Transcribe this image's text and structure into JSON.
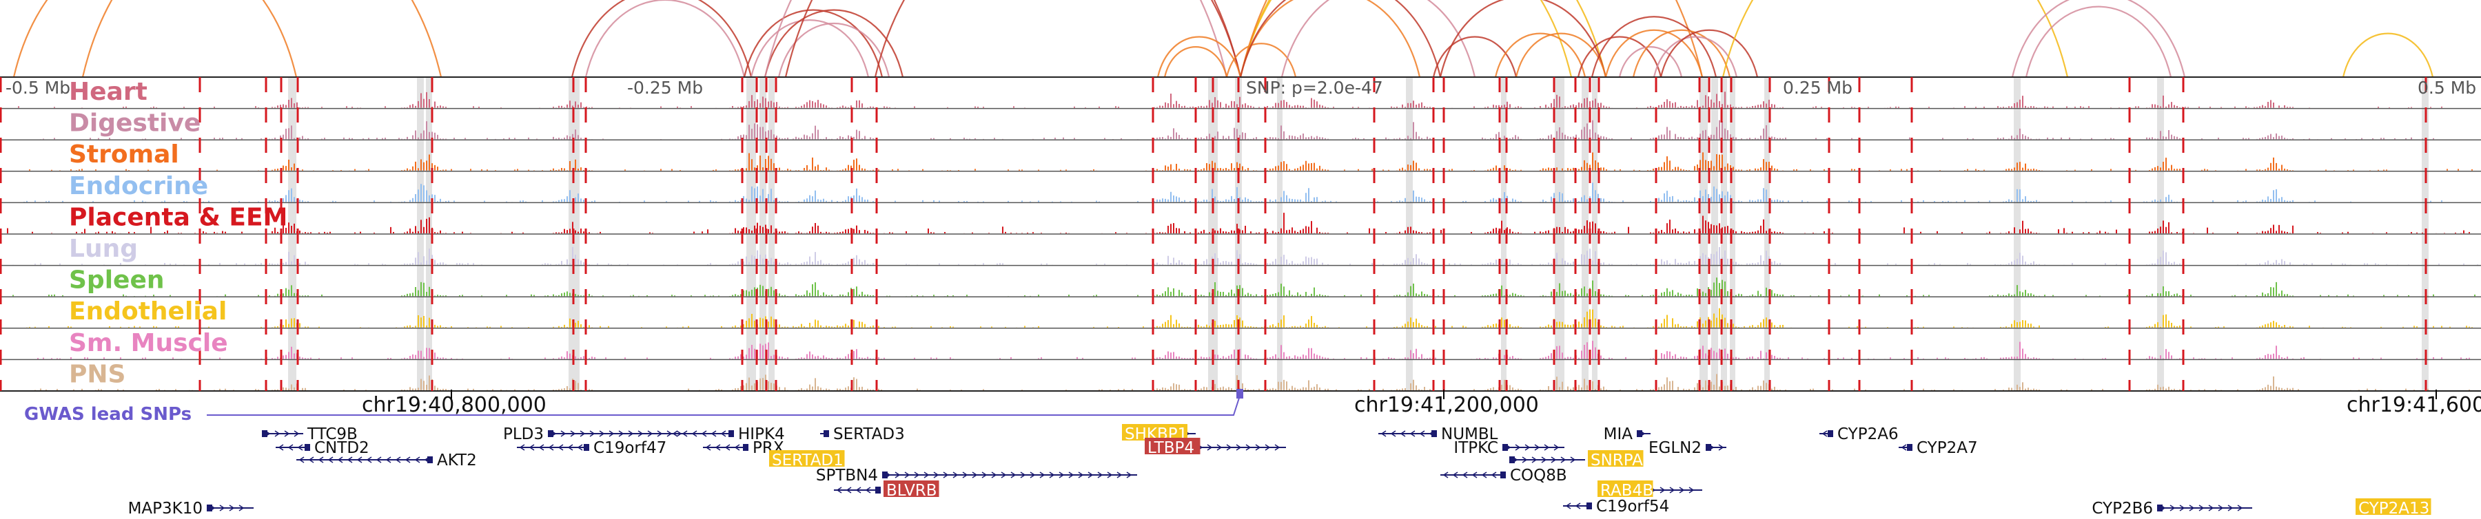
{
  "browser": {
    "tracks": [
      {
        "label": "Heart",
        "color": "#d0687f"
      },
      {
        "label": "Digestive",
        "color": "#c98ba6"
      },
      {
        "label": "Stromal",
        "color": "#f26e1e"
      },
      {
        "label": "Endocrine",
        "color": "#93bff0"
      },
      {
        "label": "Placenta & EEM",
        "color": "#d6181f"
      },
      {
        "label": "Lung",
        "color": "#cfcce6"
      },
      {
        "label": "Spleen",
        "color": "#6fc24a"
      },
      {
        "label": "Endothelial",
        "color": "#f5c41d"
      },
      {
        "label": "Sm. Muscle",
        "color": "#e884c0"
      },
      {
        "label": "PNS",
        "color": "#d8b592"
      }
    ],
    "scale_labels": [
      "-0.5 Mb",
      "-0.25 Mb",
      "0.25 Mb",
      "0.5 Mb"
    ],
    "snp_label": "SNP: p=2.0e-47",
    "coordinates": [
      "chr19:40,800,000",
      "chr19:41,200,000",
      "chr19:41,600"
    ],
    "gwas_label": "GWAS lead SNPs",
    "genes": [
      {
        "name": "TTC9B",
        "strand": "+",
        "highlight": null
      },
      {
        "name": "CNTD2",
        "strand": "-",
        "highlight": null
      },
      {
        "name": "AKT2",
        "strand": "-",
        "highlight": null
      },
      {
        "name": "MAP3K10",
        "strand": "+",
        "highlight": null
      },
      {
        "name": "PLD3",
        "strand": "+",
        "highlight": null
      },
      {
        "name": "C19orf47",
        "strand": "-",
        "highlight": null
      },
      {
        "name": "HIPK4",
        "strand": "-",
        "highlight": null
      },
      {
        "name": "PRX",
        "strand": "-",
        "highlight": null
      },
      {
        "name": "SERTAD1",
        "strand": "+",
        "highlight": "#f5c41d"
      },
      {
        "name": "SERTAD3",
        "strand": "-",
        "highlight": null
      },
      {
        "name": "SPTBN4",
        "strand": "+",
        "highlight": null
      },
      {
        "name": "BLVRB",
        "strand": "-",
        "highlight": "#c4413f"
      },
      {
        "name": "SHKBP1",
        "strand": "+",
        "highlight": "#f5c41d"
      },
      {
        "name": "LTBP4",
        "strand": "+",
        "highlight": "#c4413f"
      },
      {
        "name": "NUMBL",
        "strand": "-",
        "highlight": null
      },
      {
        "name": "ITPKC",
        "strand": "+",
        "highlight": null
      },
      {
        "name": "SNRPA",
        "strand": "+",
        "highlight": "#f5c41d"
      },
      {
        "name": "COQ8B",
        "strand": "-",
        "highlight": null
      },
      {
        "name": "RAB4B",
        "strand": "+",
        "highlight": "#f5c41d"
      },
      {
        "name": "C19orf54",
        "strand": "-",
        "highlight": null
      },
      {
        "name": "MIA",
        "strand": "+",
        "highlight": null
      },
      {
        "name": "EGLN2",
        "strand": "+",
        "highlight": null
      },
      {
        "name": "CYP2A6",
        "strand": "-",
        "highlight": null
      },
      {
        "name": "CYP2A7",
        "strand": "-",
        "highlight": null
      },
      {
        "name": "CYP2B6",
        "strand": "+",
        "highlight": null
      },
      {
        "name": "CYP2A13",
        "strand": "+",
        "highlight": "#f5c41d"
      }
    ],
    "colors": {
      "ocr_marker": "#d6181f",
      "highlight_band": "#d8d8d8",
      "gwas": "#6a5acd",
      "gene_model": "#1a1a6e",
      "loop_red": "#c0392b",
      "loop_pink": "#d48b9b",
      "loop_orange": "#f07c24",
      "loop_yellow": "#f5b914"
    }
  }
}
